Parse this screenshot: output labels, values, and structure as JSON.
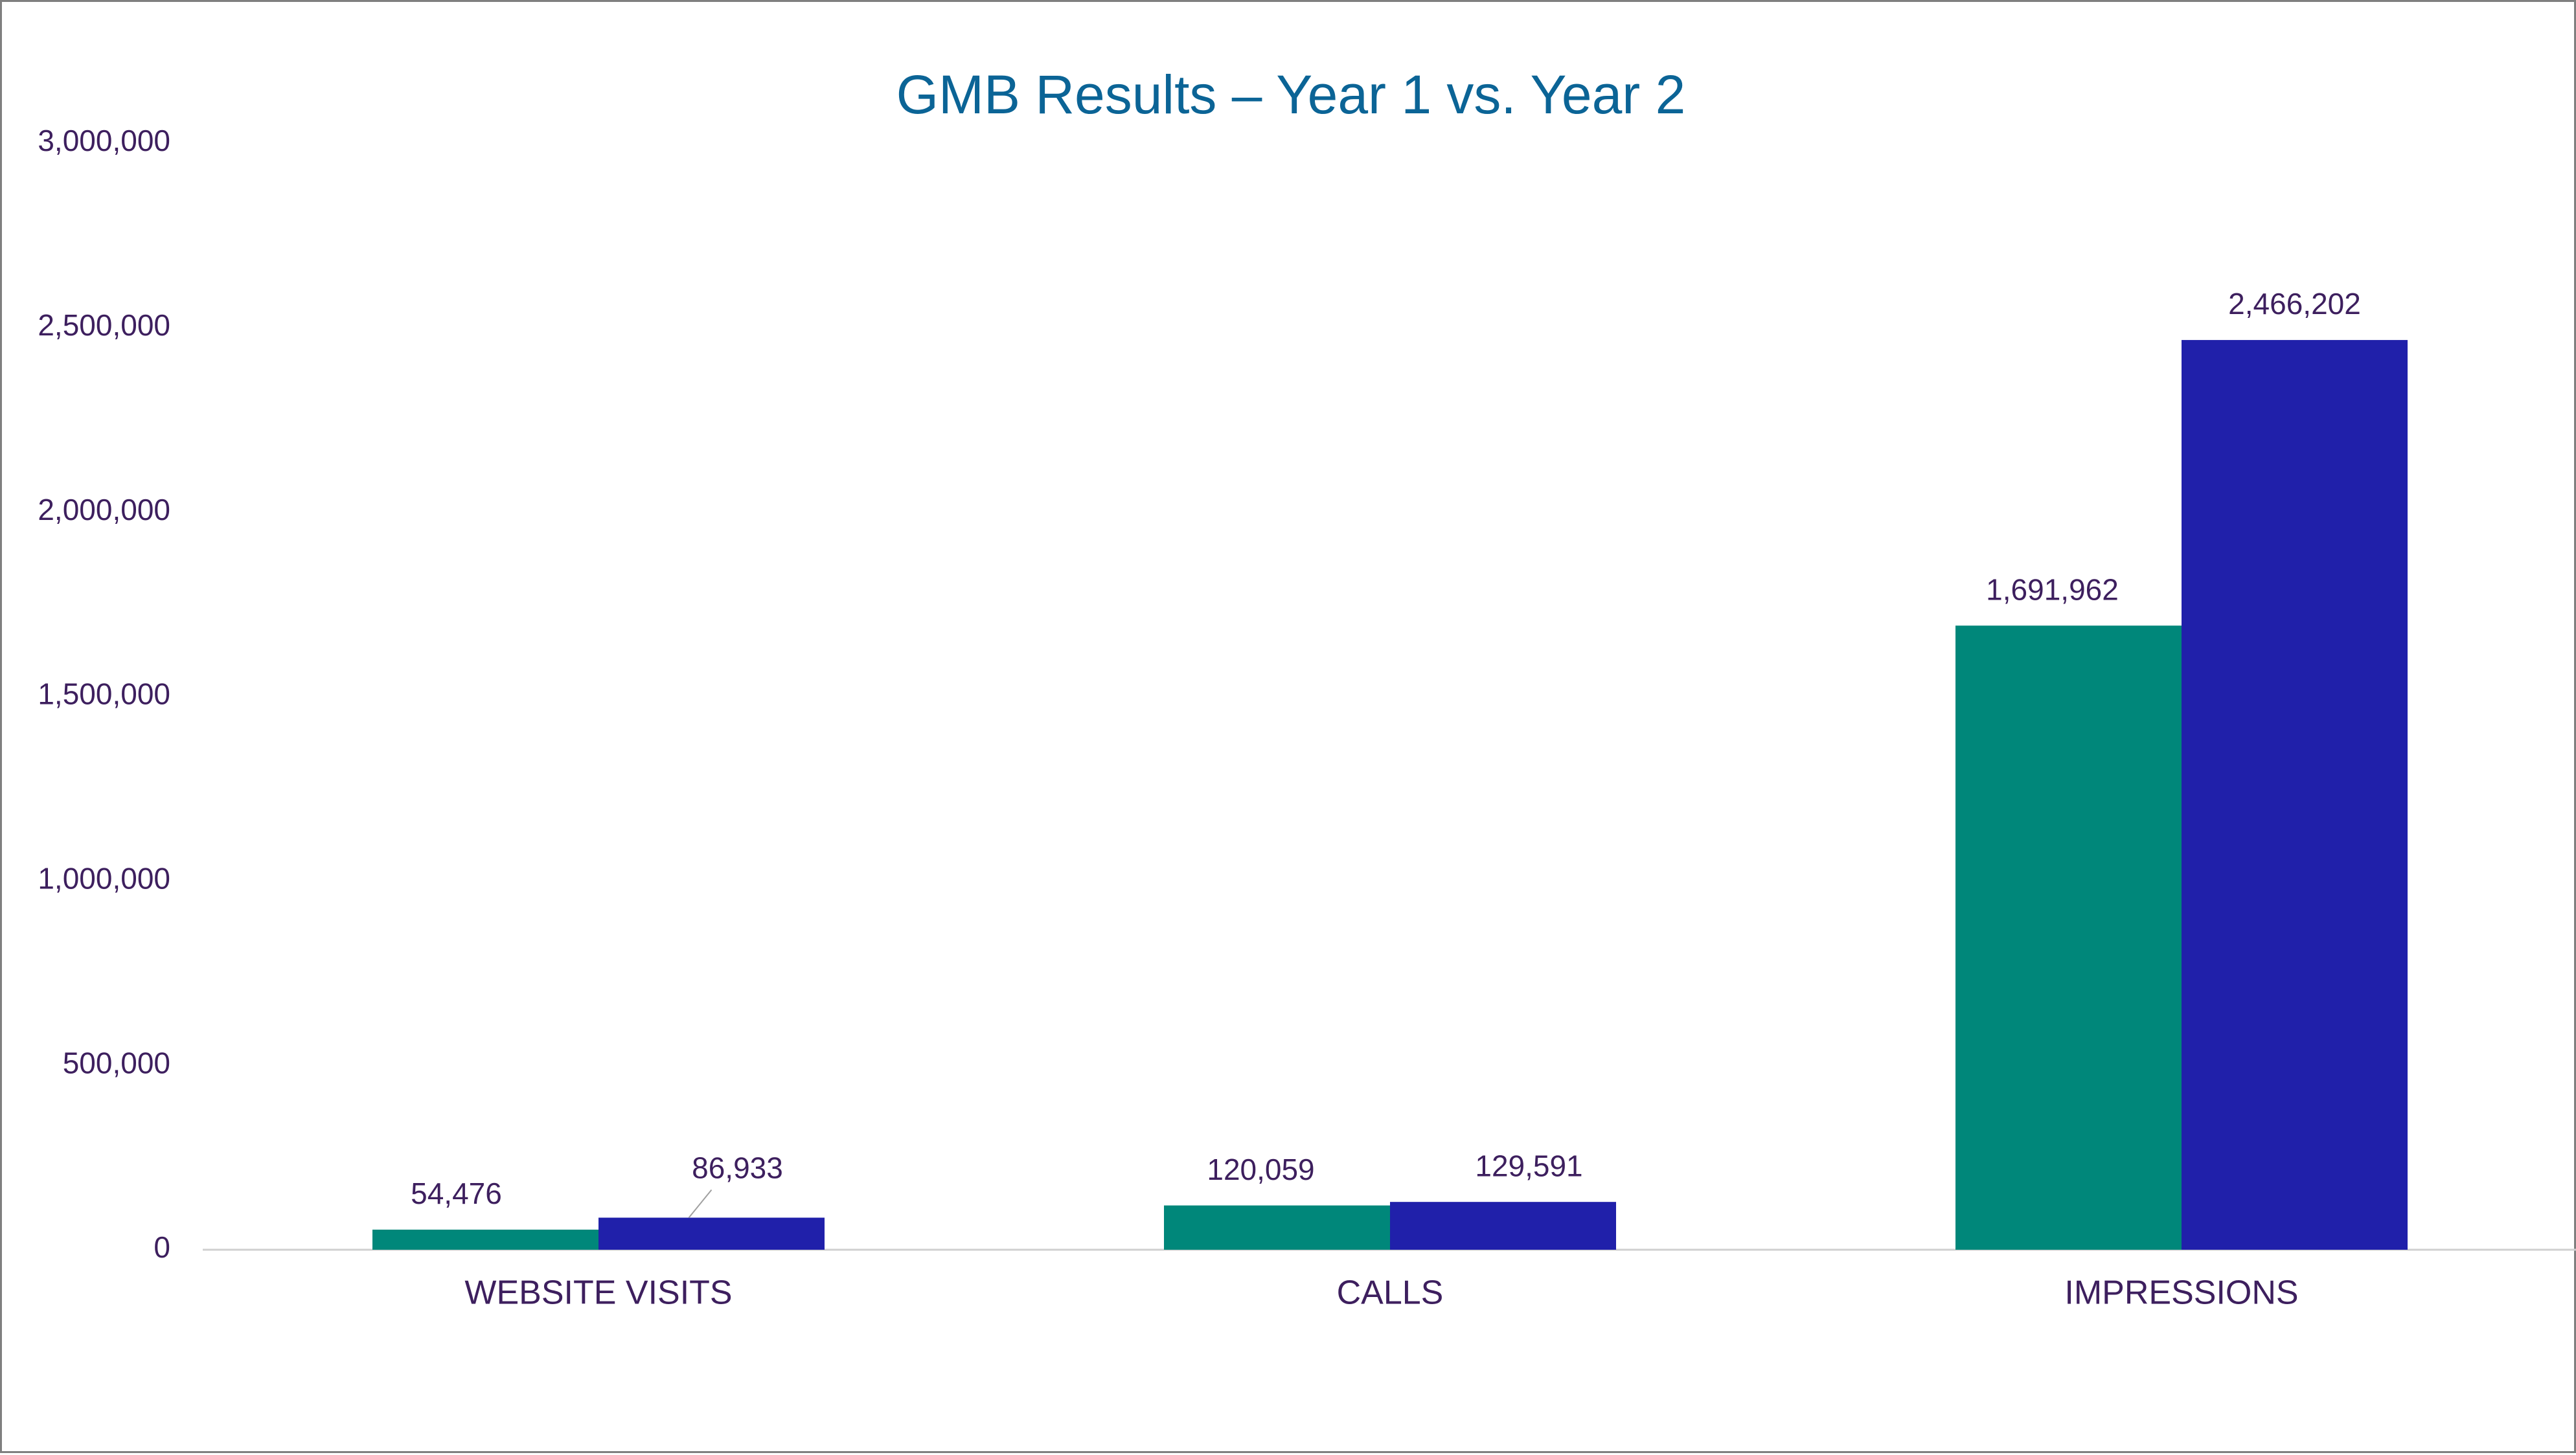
{
  "colors": {
    "title": "#0b6496",
    "text": "#3d1f5e",
    "axis": "#d0d0d0",
    "series_1": "#00877a",
    "series_2": "#2020aa"
  },
  "chart_data": {
    "type": "bar",
    "title": "GMB Results – Year 1 vs. Year 2",
    "xlabel": "",
    "ylabel": "",
    "categories": [
      "WEBSITE VISITS",
      "CALLS",
      "IMPRESSIONS"
    ],
    "series": [
      {
        "values": [
          54476,
          120059,
          1691962
        ],
        "data_labels": [
          "54,476",
          "120,059",
          "1,691,962"
        ]
      },
      {
        "values": [
          86933,
          129591,
          2466202
        ],
        "data_labels": [
          "86,933",
          "129,591",
          "2,466,202"
        ]
      }
    ],
    "ylim": [
      0,
      3000000
    ],
    "y_ticks": [
      0,
      500000,
      1000000,
      1500000,
      2000000,
      2500000,
      3000000
    ],
    "y_tick_labels": [
      "0",
      "500,000",
      "1,000,000",
      "1,500,000",
      "2,000,000",
      "2,500,000",
      "3,000,000"
    ],
    "grid": false,
    "legend": "none"
  }
}
